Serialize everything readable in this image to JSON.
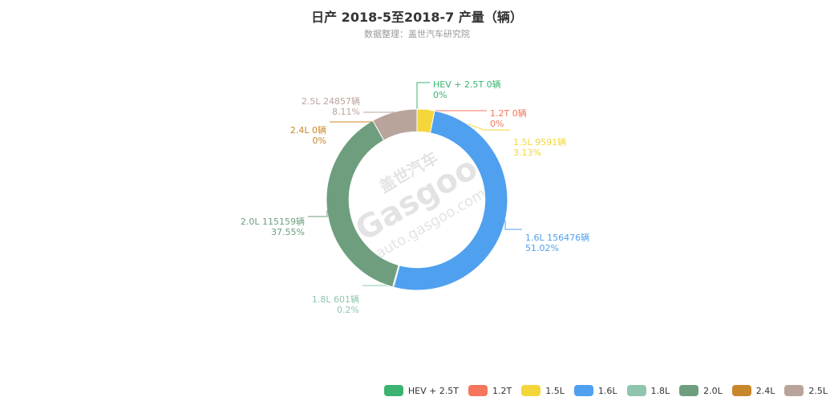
{
  "chart_data": {
    "type": "pie",
    "title": "日产 2018-5至2018-7 产量（辆）",
    "subtitle": "数据整理：盖世汽车研究院",
    "watermark": "盖世汽车 Gasgoo auto.gasgoo.com",
    "slices": [
      {
        "name": "HEV + 2.5T",
        "value": 0,
        "value_label": "0辆",
        "percent": "0%",
        "color": "#3cb371"
      },
      {
        "name": "1.2T",
        "value": 0,
        "value_label": "0辆",
        "percent": "0%",
        "color": "#f4765c"
      },
      {
        "name": "1.5L",
        "value": 9591,
        "value_label": "9591辆",
        "percent": "3.13%",
        "color": "#f5d63a"
      },
      {
        "name": "1.6L",
        "value": 156476,
        "value_label": "156476辆",
        "percent": "51.02%",
        "color": "#4fa0ef"
      },
      {
        "name": "1.8L",
        "value": 601,
        "value_label": "601辆",
        "percent": "0.2%",
        "color": "#8fc5ac"
      },
      {
        "name": "2.0L",
        "value": 115159,
        "value_label": "115159辆",
        "percent": "37.55%",
        "color": "#6e9e7e"
      },
      {
        "name": "2.4L",
        "value": 0,
        "value_label": "0辆",
        "percent": "0%",
        "color": "#c8872a"
      },
      {
        "name": "2.5L",
        "value": 24857,
        "value_label": "24857辆",
        "percent": "8.11%",
        "color": "#b9a49b"
      }
    ],
    "legend_position": "bottom-right",
    "inner_radius_ratio": 0.75
  }
}
